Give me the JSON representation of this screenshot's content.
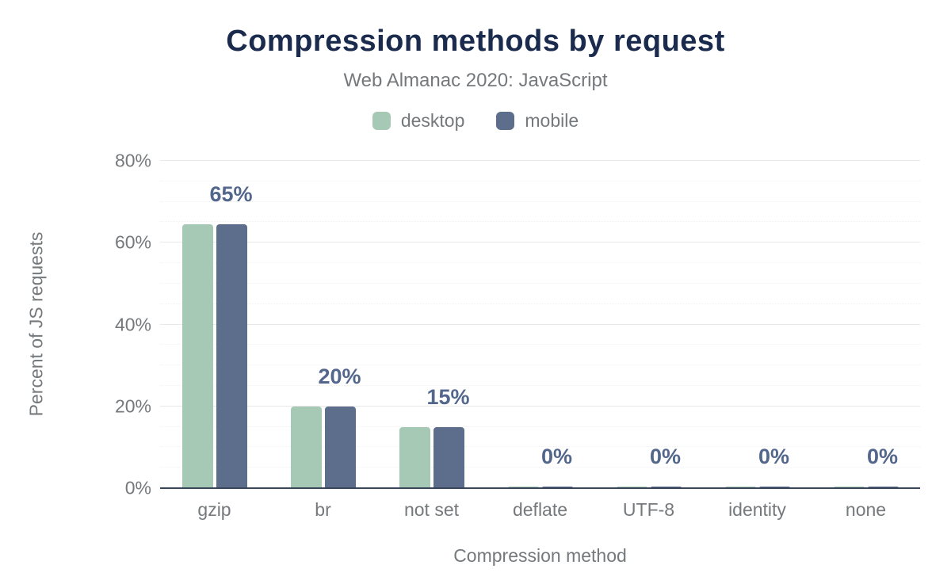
{
  "chart": {
    "title": "Compression methods by request",
    "subtitle": "Web Almanac 2020: JavaScript"
  },
  "chart_data": {
    "type": "bar",
    "categories": [
      "gzip",
      "br",
      "not set",
      "deflate",
      "UTF-8",
      "identity",
      "none"
    ],
    "series": [
      {
        "name": "desktop",
        "color": "#a5c9b5",
        "values": [
          64.5,
          20,
          15,
          0,
          0,
          0,
          0
        ]
      },
      {
        "name": "mobile",
        "color": "#5d6e8c",
        "values": [
          64.5,
          20,
          15,
          0,
          0,
          0,
          0
        ]
      }
    ],
    "data_labels": [
      "65%",
      "20%",
      "15%",
      "0%",
      "0%",
      "0%",
      "0%"
    ],
    "title": "Compression methods by request",
    "subtitle": "Web Almanac 2020: JavaScript",
    "xlabel": "Compression method",
    "ylabel": "Percent of JS requests",
    "y_ticks": [
      "0%",
      "20%",
      "40%",
      "60%",
      "80%"
    ],
    "ylim": [
      0,
      80
    ],
    "major_step": 20,
    "minor_step": 5,
    "grid": true,
    "legend_position": "top"
  },
  "colors": {
    "title": "#1b2b4d",
    "subtitle": "#75797c",
    "axis_text": "#75797c",
    "data_label": "#53678c",
    "desktop": "#a5c9b5",
    "mobile": "#5d6e8c",
    "axis_line": "#39455c",
    "major_grid": "#e8e8e8",
    "minor_grid": "#f0f0f0"
  }
}
